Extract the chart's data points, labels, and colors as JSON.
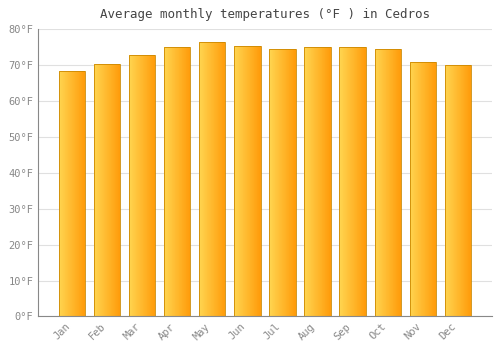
{
  "title": "Average monthly temperatures (°F ) in Cedros",
  "months": [
    "Jan",
    "Feb",
    "Mar",
    "Apr",
    "May",
    "Jun",
    "Jul",
    "Aug",
    "Sep",
    "Oct",
    "Nov",
    "Dec"
  ],
  "values": [
    68.5,
    70.5,
    73.0,
    75.0,
    76.5,
    75.5,
    74.5,
    75.0,
    75.0,
    74.5,
    71.0,
    70.0
  ],
  "bar_color_left": "#FFD060",
  "bar_color_right": "#FFA010",
  "bar_edge_color": "#CC8800",
  "background_color": "#FFFFFF",
  "grid_color": "#E0E0E0",
  "tick_label_color": "#888888",
  "title_color": "#444444",
  "ylim": [
    0,
    80
  ],
  "yticks": [
    0,
    10,
    20,
    30,
    40,
    50,
    60,
    70,
    80
  ],
  "ytick_labels": [
    "0°F",
    "10°F",
    "20°F",
    "30°F",
    "40°F",
    "50°F",
    "60°F",
    "70°F",
    "80°F"
  ]
}
